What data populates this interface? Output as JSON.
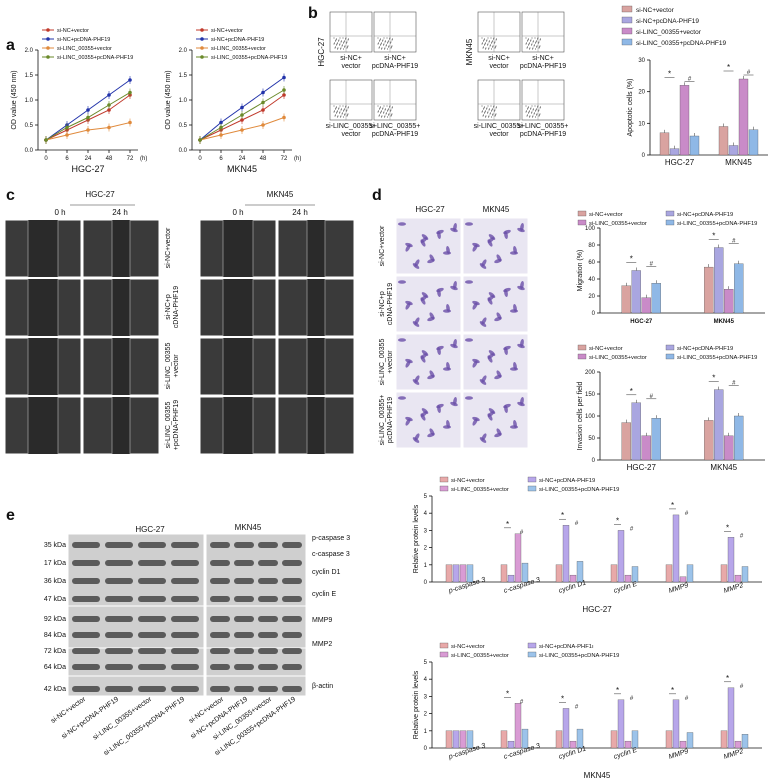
{
  "panels": {
    "a": {
      "letter": "a",
      "legend": [
        "si-NC+vector",
        "si-NC+pcDNA-PHF19",
        "si-LINC_00355+vector",
        "si-LINC_00355+pcDNA-PHF19"
      ],
      "series_colors": [
        "#c0392b",
        "#2233aa",
        "#e08a3c",
        "#6a8a2a"
      ],
      "x_ticks": [
        "0",
        "6",
        "24",
        "48",
        "72"
      ],
      "x_unit": "(h)",
      "y_label": "OD value (450 nm)",
      "y_ticks": [
        "0.0",
        "0.5",
        "1.0",
        "1.5",
        "2.0"
      ],
      "charts": [
        {
          "name": "HGC-27",
          "series": [
            [
              0.2,
              0.4,
              0.6,
              0.8,
              1.1
            ],
            [
              0.2,
              0.5,
              0.8,
              1.1,
              1.4
            ],
            [
              0.2,
              0.3,
              0.4,
              0.45,
              0.55
            ],
            [
              0.2,
              0.45,
              0.65,
              0.9,
              1.15
            ]
          ]
        },
        {
          "name": "MKN45",
          "series": [
            [
              0.2,
              0.4,
              0.6,
              0.8,
              1.1
            ],
            [
              0.2,
              0.55,
              0.85,
              1.15,
              1.45
            ],
            [
              0.2,
              0.3,
              0.4,
              0.5,
              0.65
            ],
            [
              0.2,
              0.45,
              0.7,
              0.95,
              1.2
            ]
          ]
        }
      ]
    },
    "b": {
      "letter": "b",
      "hgc_label": "HGC-27",
      "mkn_label": "MKN45",
      "flow_labels": [
        "si-NC+\nvector",
        "si-NC+\npcDNA-PHF19",
        "si-LINC_00355+\nvector",
        "si-LINC_00355+\npcDNA-PHF19"
      ],
      "bar_legend": [
        "si-NC+vector",
        "si-NC+pcDNA-PHF19",
        "si-LINC_00355+vector",
        "si-LINC_00355+pcDNA-PHF19"
      ],
      "bar_colors": [
        "#d9a3a0",
        "#a9a6e0",
        "#c98bc8",
        "#8fb8e6"
      ],
      "y_label": "Apoptotic cells (%)",
      "y_ticks": [
        "0",
        "10",
        "20",
        "30"
      ],
      "groups": [
        "HGC-27",
        "MKN45"
      ],
      "values": [
        [
          7,
          2,
          22,
          6
        ],
        [
          9,
          3,
          24,
          8
        ]
      ],
      "sig": [
        "*",
        "*",
        "#",
        "*",
        "*",
        "#"
      ]
    },
    "c": {
      "letter": "c",
      "hgc_label": "HGC-27",
      "mkn_label": "MKN45",
      "time_labels": [
        "0 h",
        "24 h"
      ],
      "row_labels": [
        "si-NC+vector",
        "si-NC+p\ncDNA-PHF19",
        "si-LINC_00355\n+vector",
        "si-LINC_00355\n+pcDNA-PHF19"
      ]
    },
    "d": {
      "letter": "d",
      "hgc_label": "HGC-27",
      "mkn_label": "MKN45",
      "row_labels": [
        "si-NC+vector",
        "si-NC+p\ncDNA-PHF19",
        "si-LINC_00355\n+vector",
        "si-LINC_00355+\npcDNA-PHF19"
      ],
      "legend": [
        "si-NC+vector",
        "si-NC+pcDNA-PHF19",
        "si-LINC_00355+vector",
        "si-LINC_00355+pcDNA-PHF19"
      ],
      "bar_colors": [
        "#d9a3a0",
        "#a9a6e0",
        "#c98bc8",
        "#8fb8e6"
      ],
      "migration": {
        "y_label": "Migration (%)",
        "y_ticks": [
          "0",
          "20",
          "40",
          "60",
          "80",
          "100"
        ],
        "groups": [
          "HGC-27",
          "MKN45"
        ],
        "values": [
          [
            32,
            50,
            18,
            35
          ],
          [
            54,
            77,
            28,
            58
          ]
        ]
      },
      "invasion": {
        "y_label": "Invasion cells per field",
        "y_ticks": [
          "0",
          "50",
          "100",
          "150",
          "200"
        ],
        "groups": [
          "HGC-27",
          "MKN45"
        ],
        "values": [
          [
            85,
            130,
            55,
            95
          ],
          [
            90,
            160,
            55,
            100
          ]
        ]
      }
    },
    "e": {
      "letter": "e",
      "hgc_label": "HGC-27",
      "mkn_label": "MKN45",
      "kda": [
        "35 kDa",
        "17 kDa",
        "36 kDa",
        "47 kDa",
        "92 kDa",
        "84 kDa",
        "72 kDa",
        "64 kDa",
        "42 kDa"
      ],
      "proteins": [
        "p-caspase 3",
        "c-caspase 3",
        "cyclin D1",
        "cyclin E",
        "MMP9",
        "MMP2",
        "β-actin"
      ],
      "lane_labels": [
        "si-NC+vector",
        "si-NC+pcDNA-PHF19",
        "si-LINC_00355+vector",
        "si-LINC_00355+pcDNA-PHF19",
        "si-NC+vector",
        "si-NC+pcDNA-PHF19",
        "si-LINC_00355+vector",
        "si-LINC_00355+pcDNA-PHF19"
      ],
      "legend_hgc": [
        "si-NC+vector",
        "si-NC+pcDNA-PHF19",
        "si-LINC_00355+vector",
        "si-LINC_00355+pcDNA-PHF19"
      ],
      "legend_mkn": [
        "si-NC+vector",
        "si-NC+pcDNA-PHF1ı",
        "si-LINC_00355+vector",
        "si-LINC_00355+pcDNA-PHF19"
      ],
      "bar_colors": [
        "#e8a9a9",
        "#b7a6ea",
        "#d99bd4",
        "#9cc3ea"
      ],
      "y_label": "Relative protein levels",
      "y_ticks": [
        "0",
        "1",
        "2",
        "3",
        "4",
        "5"
      ],
      "categories": [
        "p-caspase 3",
        "c-caspase 3",
        "cyclin D1",
        "cyclin E",
        "MMP9",
        "MMP2"
      ],
      "hgc_values": [
        [
          1,
          1,
          1,
          1
        ],
        [
          1,
          0.4,
          2.8,
          1.1
        ],
        [
          1,
          3.3,
          0.4,
          1.2
        ],
        [
          1,
          3.0,
          0.4,
          0.9
        ],
        [
          1,
          3.9,
          0.3,
          1.0
        ],
        [
          1,
          2.6,
          0.4,
          0.9
        ]
      ],
      "mkn_values": [
        [
          1,
          1,
          1,
          1
        ],
        [
          1,
          0.4,
          2.6,
          1.1
        ],
        [
          1,
          2.3,
          0.4,
          1.1
        ],
        [
          1,
          2.8,
          0.4,
          1.0
        ],
        [
          1,
          2.8,
          0.4,
          0.9
        ],
        [
          1,
          3.5,
          0.4,
          0.8
        ]
      ],
      "hgc_title": "HGC-27",
      "mkn_title": "MKN45"
    }
  }
}
